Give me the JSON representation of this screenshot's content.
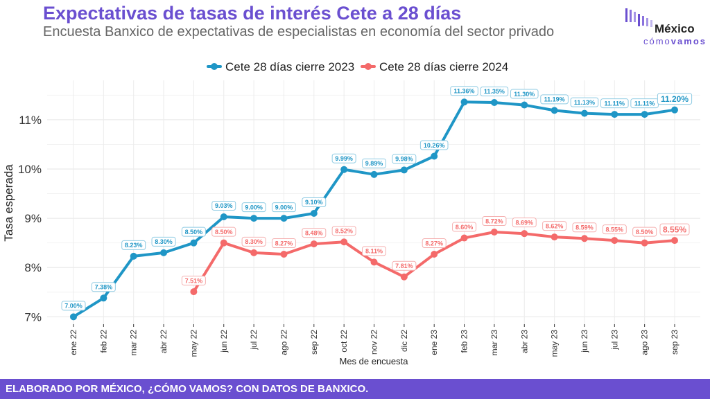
{
  "header": {
    "title": "Expectativas de tasas de interés Cete a 28 días",
    "subtitle": "Encuesta Banxico de expectativas de especialistas en economía del sector privado"
  },
  "logo": {
    "name": "México",
    "sub_light": "cómo",
    "sub_bold": "vamos"
  },
  "footer": {
    "text": "ELABORADO POR MÉXICO, ¿CÓMO VAMOS? CON DATOS DE BANXICO."
  },
  "colors": {
    "brand": "#6a4fd0",
    "series_2023": "#1f96c6",
    "series_2024": "#f46a6a"
  },
  "chart_data": {
    "type": "line",
    "xlabel": "Mes de encuesta",
    "ylabel": "Tasa esperada",
    "ylim": [
      6.85,
      11.8
    ],
    "yticks": [
      7,
      8,
      9,
      10,
      11
    ],
    "ytick_labels": [
      "7%",
      "8%",
      "9%",
      "10%",
      "11%"
    ],
    "legend_position": "top-center",
    "grid": true,
    "categories": [
      "ene 22",
      "feb 22",
      "mar 22",
      "abr 22",
      "may 22",
      "jun 22",
      "jul 22",
      "ago 22",
      "sep 22",
      "oct 22",
      "nov 22",
      "dic 22",
      "ene 23",
      "feb 23",
      "mar 23",
      "abr 23",
      "may 23",
      "jun 23",
      "jul 23",
      "ago 23",
      "sep 23"
    ],
    "series": [
      {
        "name": "Cete 28 días cierre 2023",
        "color": "#1f96c6",
        "values": [
          7.0,
          7.38,
          8.23,
          8.3,
          8.5,
          9.03,
          9.0,
          9.0,
          9.1,
          9.99,
          9.89,
          9.98,
          10.26,
          11.36,
          11.35,
          11.3,
          11.19,
          11.13,
          11.11,
          11.11,
          11.2
        ],
        "labels": [
          "7.00%",
          "7.38%",
          "8.23%",
          "8.30%",
          "8.50%",
          "9.03%",
          "9.00%",
          "9.00%",
          "9.10%",
          "9.99%",
          "9.89%",
          "9.98%",
          "10.26%",
          "11.36%",
          "11.35%",
          "11.30%",
          "11.19%",
          "11.13%",
          "11.11%",
          "11.11%",
          "11.20%"
        ]
      },
      {
        "name": "Cete 28 días cierre 2024",
        "color": "#f46a6a",
        "values": [
          null,
          null,
          null,
          null,
          7.51,
          8.5,
          8.3,
          8.27,
          8.48,
          8.52,
          8.11,
          7.81,
          8.27,
          8.6,
          8.72,
          8.69,
          8.62,
          8.59,
          8.55,
          8.5,
          8.55
        ],
        "labels": [
          null,
          null,
          null,
          null,
          "7.51%",
          "8.50%",
          "8.30%",
          "8.27%",
          "8.48%",
          "8.52%",
          "8.11%",
          "7.81%",
          "8.27%",
          "8.60%",
          "8.72%",
          "8.69%",
          "8.62%",
          "8.59%",
          "8.55%",
          "8.50%",
          "8.55%"
        ]
      }
    ]
  }
}
